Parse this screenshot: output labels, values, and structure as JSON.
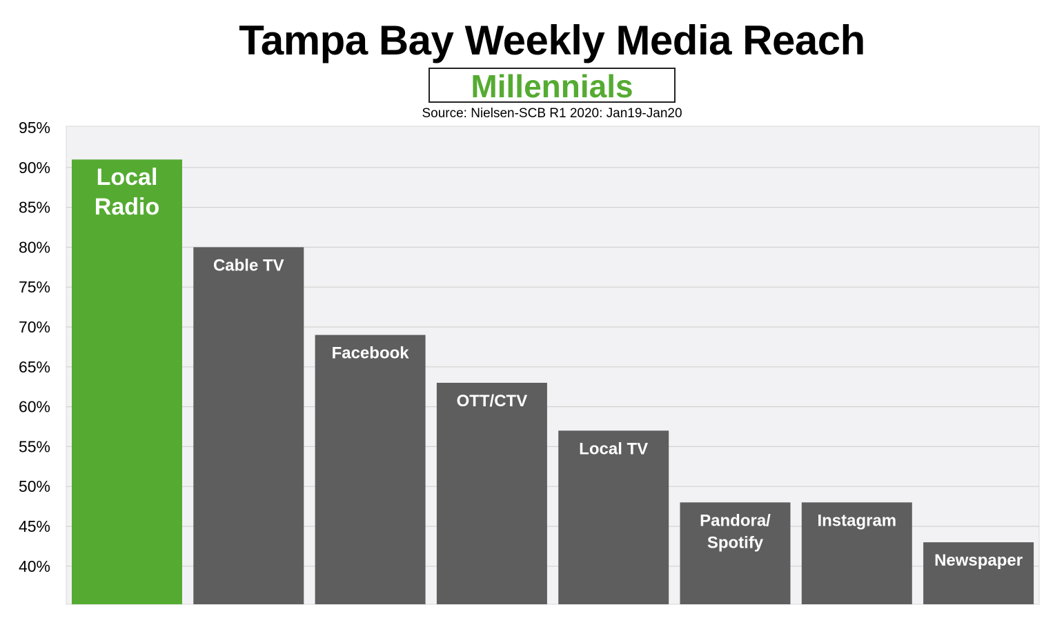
{
  "chart_data": {
    "type": "bar",
    "title": "Tampa Bay Weekly Media Reach",
    "subtitle": "Millennials",
    "source": "Source: Nielsen-SCB R1 2020: Jan19-Jan20",
    "categories": [
      [
        "Local",
        "Radio"
      ],
      [
        "Cable TV"
      ],
      [
        "Facebook"
      ],
      [
        "OTT/CTV"
      ],
      [
        "Local TV"
      ],
      [
        "Pandora/",
        "Spotify"
      ],
      [
        "Instagram"
      ],
      [
        "Newspaper"
      ]
    ],
    "values": [
      91,
      80,
      69,
      63,
      57,
      48,
      48,
      43
    ],
    "value_unit": "%",
    "highlight_index": 0,
    "ylim": [
      35,
      95
    ],
    "yticks": [
      40,
      45,
      50,
      55,
      60,
      65,
      70,
      75,
      80,
      85,
      90,
      95
    ],
    "ytick_labels": [
      "40%",
      "45%",
      "50%",
      "55%",
      "60%",
      "65%",
      "70%",
      "75%",
      "80%",
      "85%",
      "90%",
      "95%"
    ],
    "grid": true,
    "legend": "none",
    "colors": {
      "highlight": "#55ab32",
      "bar": "#5e5e5e",
      "plot_background": "#f2f2f4",
      "gridline": "#d2d2d2",
      "subtitle": "#55ab32"
    }
  }
}
